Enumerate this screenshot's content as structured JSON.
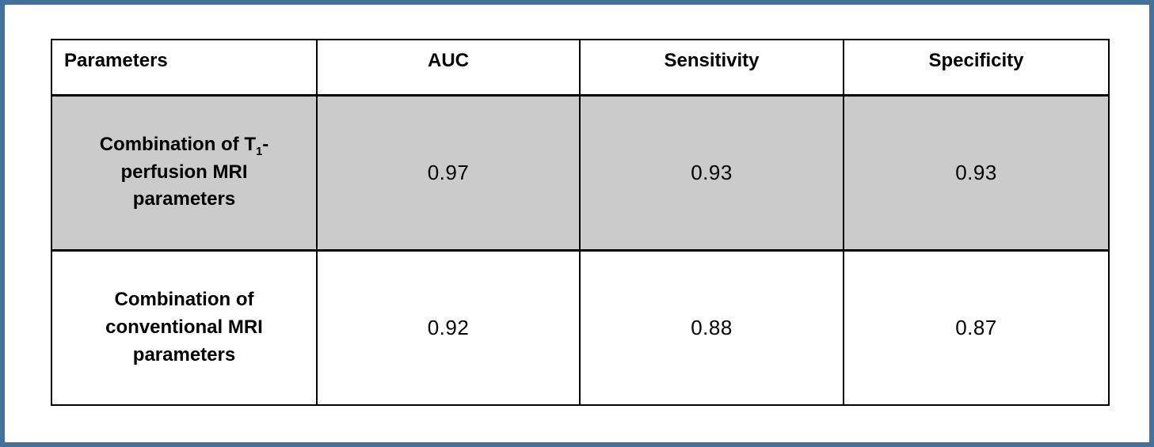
{
  "window": {
    "frame_border_color": "#41719C",
    "background_color": "#FFFFFF"
  },
  "table": {
    "grid_color": "#000000",
    "highlight_color": "#CBCBCB",
    "columns": [
      "Parameters",
      "AUC",
      "Sensitivity",
      "Specificity"
    ],
    "rows": [
      {
        "parameter_pre": "Combination of T",
        "parameter_sub": "1",
        "parameter_post": "-perfusion MRI parameters",
        "auc": "0.97",
        "sensitivity": "0.93",
        "specificity": "0.93",
        "highlighted": true
      },
      {
        "parameter_pre": "Combination of conventional MRI parameters",
        "parameter_sub": "",
        "parameter_post": "",
        "auc": "0.92",
        "sensitivity": "0.88",
        "specificity": "0.87",
        "highlighted": false
      }
    ]
  },
  "chart_data": {
    "type": "table",
    "columns": [
      "Parameters",
      "AUC",
      "Sensitivity",
      "Specificity"
    ],
    "rows": [
      [
        "Combination of T1-perfusion MRI parameters",
        0.97,
        0.93,
        0.93
      ],
      [
        "Combination of conventional MRI parameters",
        0.92,
        0.88,
        0.87
      ]
    ],
    "highlighted_row": "Combination of T1-perfusion MRI parameters"
  }
}
